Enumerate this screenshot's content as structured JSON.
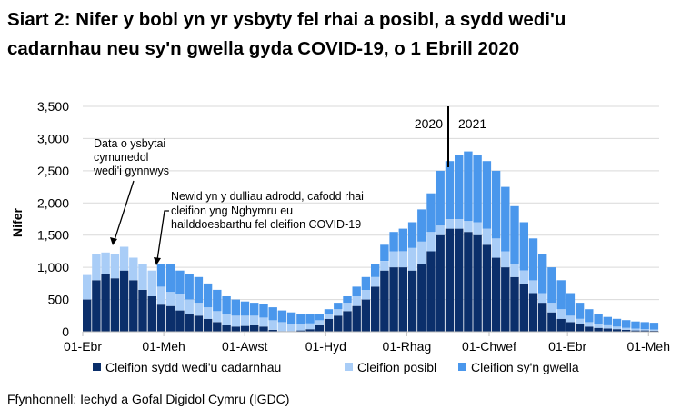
{
  "chart_data": {
    "type": "bar",
    "stacked": true,
    "title": "Siart 2: Nifer y bobl yn yr ysbyty fel rhai a posibl, a sydd wedi'u cadarnhau neu sy'n gwella gyda COVID-19, o 1 Ebrill 2020",
    "ylabel": "Nifer",
    "xlabel": "",
    "ylim": [
      0,
      3500
    ],
    "yticks": [
      "0",
      "500",
      "1,000",
      "1,500",
      "2,000",
      "2,500",
      "3,000",
      "3,500"
    ],
    "xticks": [
      {
        "date": "2020-04-01",
        "label": "01-Ebr"
      },
      {
        "date": "2020-06-01",
        "label": "01-Meh"
      },
      {
        "date": "2020-08-01",
        "label": "01-Awst"
      },
      {
        "date": "2020-10-01",
        "label": "01-Hyd"
      },
      {
        "date": "2020-12-01",
        "label": "01-Rhag"
      },
      {
        "date": "2021-02-01",
        "label": "01-Chwef"
      },
      {
        "date": "2021-04-01",
        "label": "01-Ebr"
      },
      {
        "date": "2021-06-01",
        "label": "01-Meh"
      }
    ],
    "grid": true,
    "legend_position": "bottom",
    "x_start": "2020-04-01",
    "x_step_days": 7,
    "series": [
      {
        "name": "Cleifion sydd wedi'u cadarnhau",
        "color": "#0b2f6b",
        "values": [
          500,
          800,
          900,
          830,
          950,
          800,
          650,
          550,
          420,
          400,
          330,
          280,
          250,
          200,
          150,
          100,
          80,
          90,
          100,
          80,
          30,
          10,
          10,
          20,
          40,
          100,
          200,
          250,
          320,
          400,
          500,
          700,
          950,
          1000,
          1000,
          950,
          1050,
          1250,
          1500,
          1600,
          1600,
          1550,
          1500,
          1350,
          1150,
          1000,
          850,
          750,
          600,
          450,
          300,
          200,
          150,
          120,
          80,
          60,
          50,
          40,
          30,
          20,
          20,
          15
        ]
      },
      {
        "name": "Cleifion posibl",
        "color": "#a9cdf7",
        "values": [
          380,
          400,
          330,
          370,
          370,
          350,
          400,
          400,
          280,
          220,
          250,
          220,
          200,
          180,
          170,
          180,
          170,
          160,
          150,
          140,
          150,
          140,
          110,
          100,
          90,
          80,
          80,
          100,
          130,
          150,
          150,
          150,
          150,
          250,
          250,
          350,
          350,
          300,
          150,
          150,
          150,
          170,
          200,
          250,
          300,
          250,
          200,
          200,
          200,
          150,
          150,
          150,
          100,
          80,
          70,
          60,
          50,
          40,
          30,
          30,
          20,
          20
        ]
      },
      {
        "name": "Cleifion sy'n gwella",
        "color": "#4a97ec",
        "values": [
          0,
          0,
          0,
          0,
          0,
          0,
          0,
          0,
          350,
          430,
          370,
          400,
          400,
          370,
          330,
          270,
          250,
          220,
          200,
          210,
          200,
          180,
          180,
          160,
          140,
          100,
          70,
          100,
          100,
          150,
          200,
          200,
          250,
          300,
          350,
          400,
          500,
          600,
          850,
          900,
          1000,
          1080,
          1050,
          1050,
          1050,
          1000,
          900,
          750,
          650,
          600,
          550,
          450,
          350,
          250,
          200,
          160,
          130,
          120,
          120,
          110,
          110,
          105
        ]
      }
    ],
    "annotations": [
      {
        "text": [
          "Data o ysbytai",
          "cymunedol",
          "wedi'i gynnwys"
        ]
      },
      {
        "text": [
          "Newid yn y dulliau adrodd, cafodd rhai",
          "cleifion yng Nghymru eu",
          "hailddoesbarthu fel cleifion COVID-19"
        ]
      },
      {
        "text": "2020"
      },
      {
        "text": "2021"
      }
    ]
  },
  "source": "Ffynhonnell: Iechyd a Gofal Digidol Cymru (IGDC)"
}
